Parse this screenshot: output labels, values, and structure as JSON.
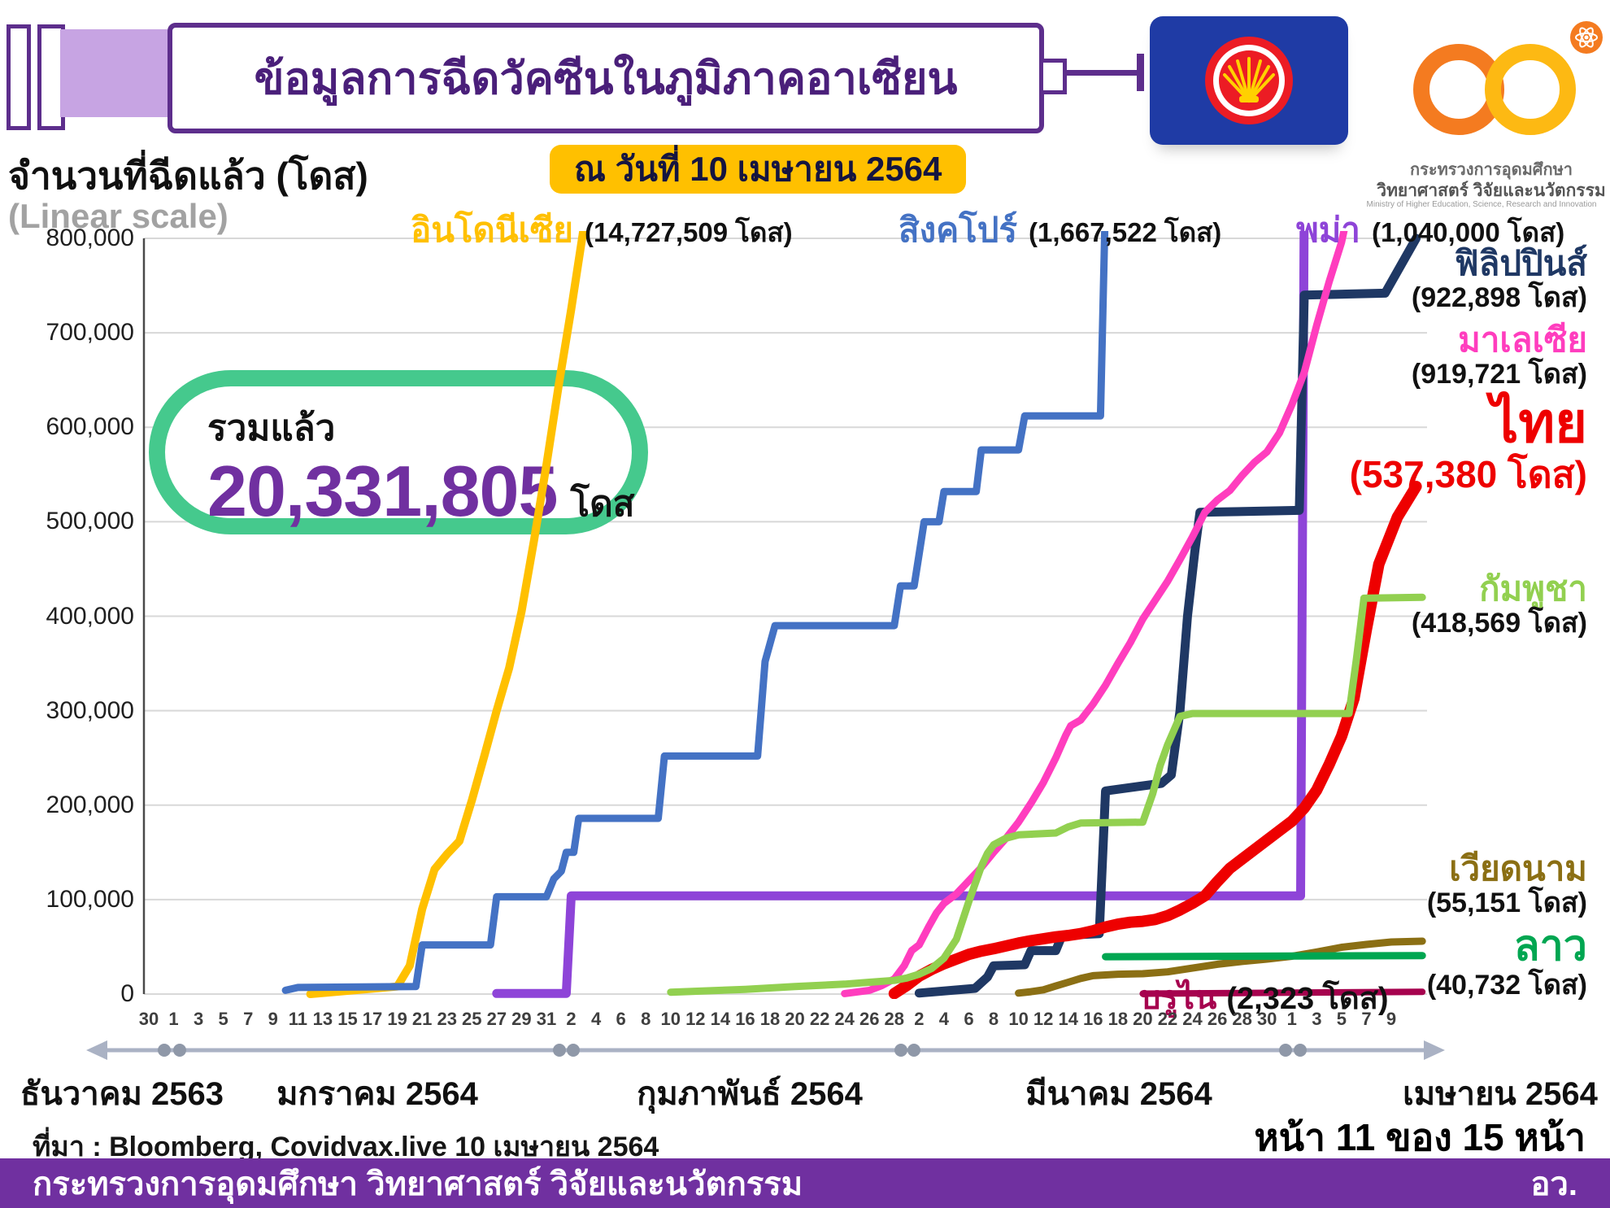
{
  "header": {
    "title": "ข้อมูลการฉีดวัคซีนในภูมิภาคอาเซียน",
    "date_badge": "ณ วันที่ 10 เมษายน 2564"
  },
  "logo_text": [
    "กระทรวงการอุดมศึกษา",
    "วิทยาศาสตร์ วิจัยและนวัตกรรม",
    "Ministry of Higher Education, Science, Research and Innovation"
  ],
  "y_axis": {
    "title": "จำนวนที่ฉีดแล้ว (โดส)",
    "subtitle": "(Linear scale)",
    "ticks": [
      "800,000",
      "700,000",
      "600,000",
      "500,000",
      "400,000",
      "300,000",
      "200,000",
      "100,000",
      "0"
    ]
  },
  "x_axis": {
    "tick_labels": [
      "30",
      "1",
      "3",
      "5",
      "7",
      "9",
      "11",
      "13",
      "15",
      "17",
      "19",
      "21",
      "23",
      "25",
      "27",
      "29",
      "31",
      "2",
      "4",
      "6",
      "8",
      "10",
      "12",
      "14",
      "16",
      "18",
      "20",
      "22",
      "24",
      "26",
      "28",
      "2",
      "4",
      "6",
      "8",
      "10",
      "12",
      "14",
      "16",
      "18",
      "20",
      "22",
      "24",
      "26",
      "28",
      "30",
      "1",
      "3",
      "5",
      "7",
      "9"
    ],
    "months": [
      "ธันวาคม 2563",
      "มกราคม 2564",
      "กุมภาพันธ์ 2564",
      "มีนาคม 2564",
      "เมษายน 2564"
    ]
  },
  "total_badge": {
    "label": "รวมแล้ว",
    "value": "20,331,805",
    "unit": "โดส"
  },
  "source": "ที่มา : Bloomberg, Covidvax.live 10 เมษายน 2564",
  "page_indicator": "หน้า 11 ของ 15 หน้า",
  "footer": {
    "ministry": "กระทรวงการอุดมศึกษา วิทยาศาสตร์ วิจัยและนวัตกรรม",
    "abbr": "อว."
  },
  "chart_data": {
    "type": "line",
    "title": "ข้อมูลการฉีดวัคซีนในภูมิภาคอาเซียน",
    "x_unit": "days since 30 Dec 2020 (axis: 30 ธ.ค. 2563 – 9 เม.ย. 2564)",
    "ylabel": "จำนวนที่ฉีดแล้ว (โดส)",
    "ylim": [
      0,
      800000
    ],
    "grid": true,
    "series": [
      {
        "id": "indonesia",
        "label": "อินโดนีเซีย",
        "doses": 14727509,
        "value_label": "(14,727,509 โดส)",
        "color": "#FFC000",
        "value_color": "#111111",
        "points": [
          [
            13,
            0
          ],
          [
            20,
            8000
          ],
          [
            21,
            30000
          ],
          [
            22,
            90000
          ],
          [
            23,
            132000
          ],
          [
            24,
            148000
          ],
          [
            25,
            162000
          ],
          [
            26,
            205000
          ],
          [
            27,
            252000
          ],
          [
            28,
            300000
          ],
          [
            29,
            345000
          ],
          [
            30,
            405000
          ],
          [
            31,
            480000
          ],
          [
            32,
            560000
          ],
          [
            33,
            645000
          ],
          [
            34,
            725000
          ],
          [
            35.4,
            845000
          ]
        ]
      },
      {
        "id": "singapore",
        "label": "สิงคโปร์",
        "doses": 1667522,
        "value_label": "(1,667,522 โดส)",
        "color": "#4472C4",
        "value_color": "#111111",
        "points": [
          [
            11,
            4000
          ],
          [
            12,
            7000
          ],
          [
            21.5,
            8000
          ],
          [
            22,
            52000
          ],
          [
            27.5,
            52000
          ],
          [
            28,
            103000
          ],
          [
            32,
            103000
          ],
          [
            32.6,
            122000
          ],
          [
            33.2,
            130000
          ],
          [
            33.6,
            150000
          ],
          [
            34.2,
            150000
          ],
          [
            34.6,
            186000
          ],
          [
            41,
            186000
          ],
          [
            41.5,
            252000
          ],
          [
            49,
            252000
          ],
          [
            49.6,
            352000
          ],
          [
            50.4,
            390000
          ],
          [
            60,
            390000
          ],
          [
            60.5,
            432000
          ],
          [
            61.6,
            432000
          ],
          [
            62,
            466000
          ],
          [
            62.4,
            500000
          ],
          [
            63.6,
            500000
          ],
          [
            64,
            532000
          ],
          [
            66.6,
            532000
          ],
          [
            67,
            576000
          ],
          [
            70,
            576000
          ],
          [
            70.5,
            612000
          ],
          [
            76.6,
            612000
          ],
          [
            77,
            845000
          ]
        ]
      },
      {
        "id": "myanmar",
        "label": "พม่า",
        "doses": 1040000,
        "value_label": "(1,040,000 โดส)",
        "color": "#8E44D8",
        "value_color": "#111111",
        "points": [
          [
            28,
            600
          ],
          [
            33.6,
            600
          ],
          [
            34,
            104000
          ],
          [
            92.7,
            104000
          ],
          [
            93,
            845000
          ]
        ]
      },
      {
        "id": "philippines",
        "label": "ฟิลิปปินส์",
        "doses": 922898,
        "value_label": "(922,898 โดส)",
        "color": "#1F3864",
        "value_color": "#111111",
        "points": [
          [
            62,
            1000
          ],
          [
            66.5,
            6000
          ],
          [
            67.5,
            18000
          ],
          [
            68,
            30000
          ],
          [
            70.5,
            31000
          ],
          [
            71,
            46000
          ],
          [
            73,
            46000
          ],
          [
            73.5,
            62000
          ],
          [
            76.5,
            64000
          ],
          [
            77,
            215000
          ],
          [
            81.5,
            223000
          ],
          [
            82.3,
            232000
          ],
          [
            83,
            300000
          ],
          [
            83.6,
            400000
          ],
          [
            84.2,
            470000
          ],
          [
            84.6,
            510000
          ],
          [
            92.6,
            512000
          ],
          [
            93,
            740000
          ],
          [
            99.5,
            742000
          ],
          [
            102,
            800000
          ]
        ]
      },
      {
        "id": "malaysia",
        "label": "มาเลเซีย",
        "doses": 919721,
        "value_label": "(919,721 โดส)",
        "color": "#FF3DBE",
        "value_color": "#111111",
        "points": [
          [
            56,
            500
          ],
          [
            58,
            4000
          ],
          [
            59,
            9000
          ],
          [
            60,
            16000
          ],
          [
            60.8,
            30000
          ],
          [
            61.4,
            46000
          ],
          [
            62,
            52000
          ],
          [
            62.8,
            72000
          ],
          [
            63.4,
            86000
          ],
          [
            64,
            96000
          ],
          [
            65,
            106000
          ],
          [
            66,
            120000
          ],
          [
            67,
            134000
          ],
          [
            68,
            150000
          ],
          [
            69,
            165000
          ],
          [
            70,
            182000
          ],
          [
            71,
            202000
          ],
          [
            72,
            224000
          ],
          [
            73,
            250000
          ],
          [
            73.8,
            274000
          ],
          [
            74.2,
            284000
          ],
          [
            75,
            290000
          ],
          [
            76,
            307000
          ],
          [
            77,
            327000
          ],
          [
            78,
            350000
          ],
          [
            79,
            372000
          ],
          [
            80,
            397000
          ],
          [
            81,
            417000
          ],
          [
            82,
            437000
          ],
          [
            83,
            460000
          ],
          [
            84,
            484000
          ],
          [
            85,
            510000
          ],
          [
            86,
            523000
          ],
          [
            87,
            533000
          ],
          [
            88,
            549000
          ],
          [
            89,
            563000
          ],
          [
            90,
            574000
          ],
          [
            91,
            594000
          ],
          [
            92,
            624000
          ],
          [
            93,
            658000
          ],
          [
            94,
            708000
          ],
          [
            95,
            754000
          ],
          [
            96,
            796000
          ],
          [
            96.8,
            845000
          ]
        ]
      },
      {
        "id": "thailand",
        "label": "ไทย",
        "doses": 537380,
        "value_label": "(537,380 โดส)",
        "color": "#EE0000",
        "value_color": "#EE0000",
        "points": [
          [
            60,
            500
          ],
          [
            61,
            9000
          ],
          [
            62,
            19000
          ],
          [
            63,
            26000
          ],
          [
            64,
            32000
          ],
          [
            65,
            37000
          ],
          [
            66,
            42000
          ],
          [
            67,
            45500
          ],
          [
            68,
            48000
          ],
          [
            69,
            51000
          ],
          [
            70,
            54000
          ],
          [
            71,
            56500
          ],
          [
            72,
            58500
          ],
          [
            73,
            60500
          ],
          [
            74,
            62000
          ],
          [
            75,
            64000
          ],
          [
            76,
            67000
          ],
          [
            77,
            71000
          ],
          [
            78,
            74000
          ],
          [
            79,
            76000
          ],
          [
            80,
            77000
          ],
          [
            81,
            79000
          ],
          [
            82,
            83000
          ],
          [
            83,
            89000
          ],
          [
            84,
            96000
          ],
          [
            85,
            104000
          ],
          [
            86,
            119000
          ],
          [
            87,
            133000
          ],
          [
            88,
            143000
          ],
          [
            89,
            153000
          ],
          [
            90,
            163000
          ],
          [
            91,
            173000
          ],
          [
            92,
            183000
          ],
          [
            93,
            197000
          ],
          [
            94,
            216000
          ],
          [
            95,
            243000
          ],
          [
            96,
            273000
          ],
          [
            97,
            313000
          ],
          [
            98,
            386000
          ],
          [
            99,
            455000
          ],
          [
            100.5,
            505000
          ],
          [
            102,
            537380
          ]
        ]
      },
      {
        "id": "cambodia",
        "label": "กัมพูชา",
        "doses": 418569,
        "value_label": "(418,569 โดส)",
        "color": "#92D050",
        "value_color": "#111111",
        "points": [
          [
            42,
            2000
          ],
          [
            48,
            5000
          ],
          [
            52,
            8000
          ],
          [
            56,
            10500
          ],
          [
            58,
            12500
          ],
          [
            60,
            14500
          ],
          [
            61,
            17000
          ],
          [
            62,
            21000
          ],
          [
            63,
            27000
          ],
          [
            64,
            38000
          ],
          [
            65,
            58000
          ],
          [
            66,
            98000
          ],
          [
            67,
            135000
          ],
          [
            67.5,
            149000
          ],
          [
            68,
            158000
          ],
          [
            69,
            165000
          ],
          [
            70,
            168500
          ],
          [
            73,
            170500
          ],
          [
            74,
            177000
          ],
          [
            75,
            181000
          ],
          [
            80,
            182000
          ],
          [
            80.8,
            212000
          ],
          [
            81.4,
            242000
          ],
          [
            82,
            264000
          ],
          [
            82.6,
            282000
          ],
          [
            83,
            294000
          ],
          [
            84,
            297000
          ],
          [
            96.6,
            297000
          ],
          [
            97.2,
            355000
          ],
          [
            97.8,
            419000
          ],
          [
            102.5,
            420000
          ]
        ]
      },
      {
        "id": "vietnam",
        "label": "เวียดนาม",
        "doses": 55151,
        "value_label": "(55,151 โดส)",
        "color": "#8B6F14",
        "value_color": "#111111",
        "points": [
          [
            70,
            1000
          ],
          [
            71,
            2500
          ],
          [
            72,
            4500
          ],
          [
            73,
            8500
          ],
          [
            74,
            12500
          ],
          [
            75,
            16500
          ],
          [
            76,
            19500
          ],
          [
            78,
            21000
          ],
          [
            80,
            21500
          ],
          [
            82,
            23500
          ],
          [
            84,
            27500
          ],
          [
            86,
            31500
          ],
          [
            88,
            34500
          ],
          [
            90,
            37000
          ],
          [
            92,
            40000
          ],
          [
            94,
            44500
          ],
          [
            96,
            49500
          ],
          [
            98,
            52500
          ],
          [
            100,
            55151
          ],
          [
            102.5,
            56000
          ]
        ]
      },
      {
        "id": "laos",
        "label": "ลาว",
        "doses": 40732,
        "value_label": "(40,732 โดส)",
        "color": "#00A651",
        "value_color": "#111111",
        "points": [
          [
            77,
            39500
          ],
          [
            102.5,
            40732
          ]
        ]
      },
      {
        "id": "brunei",
        "label": "บรูไน",
        "doses": 2323,
        "value_label": "(2,323 โดส)",
        "color": "#A6024E",
        "value_color": "#111111",
        "points": [
          [
            80,
            400
          ],
          [
            92,
            1500
          ],
          [
            102.5,
            2323
          ]
        ]
      }
    ]
  }
}
